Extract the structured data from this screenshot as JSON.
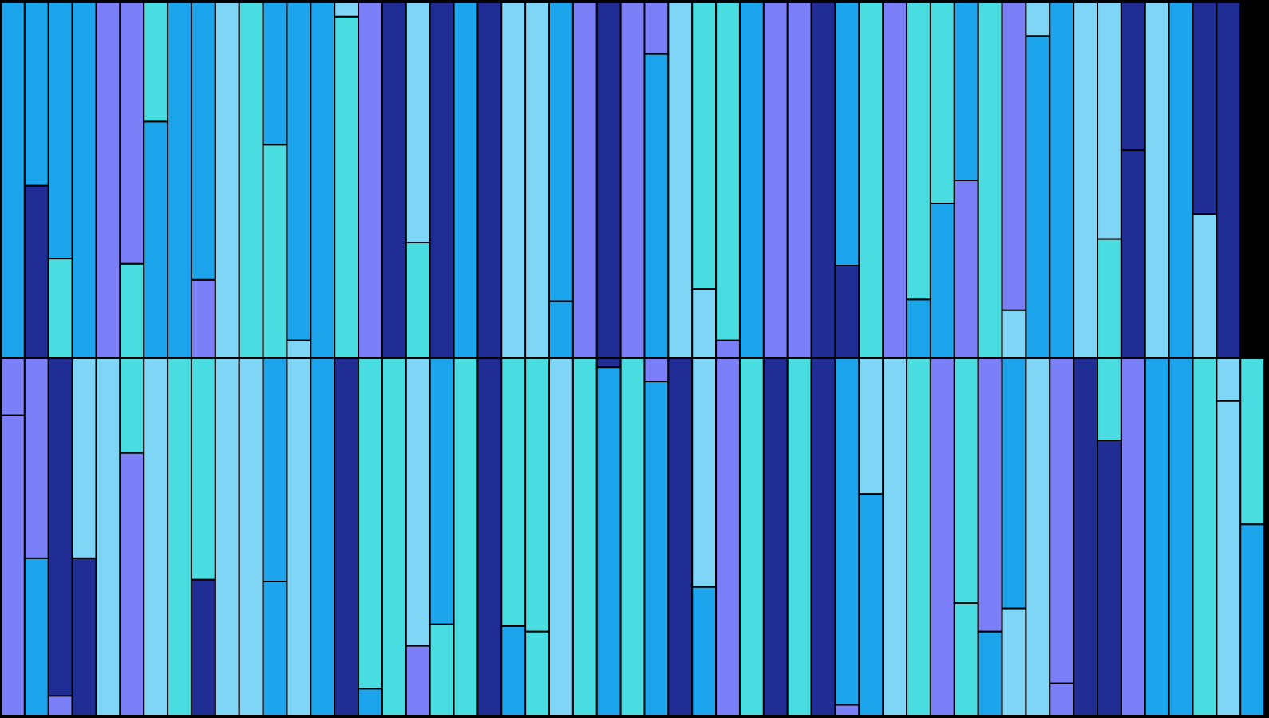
{
  "palette": {
    "A": "#1ca5ec",
    "B": "#1f2d94",
    "C": "#49dce0",
    "D": "#7b80f8",
    "E": "#7fd5f6",
    "outline": "#000000"
  },
  "columns": [
    {
      "top": [
        [
          "A",
          1.0
        ]
      ],
      "bottom": [
        [
          "D",
          0.16
        ],
        [
          "D",
          0.84
        ]
      ]
    },
    {
      "top": [
        [
          "A",
          0.515
        ],
        [
          "B",
          0.485
        ]
      ],
      "bottom": [
        [
          "D",
          0.56
        ],
        [
          "A",
          0.44
        ]
      ]
    },
    {
      "top": [
        [
          "A",
          0.72
        ],
        [
          "C",
          0.28
        ]
      ],
      "bottom": [
        [
          "B",
          0.945
        ],
        [
          "D",
          0.055
        ]
      ]
    },
    {
      "top": [
        [
          "A",
          1.0
        ]
      ],
      "bottom": [
        [
          "E",
          0.56
        ],
        [
          "B",
          0.44
        ]
      ]
    },
    {
      "top": [
        [
          "D",
          1.0
        ]
      ],
      "bottom": [
        [
          "E",
          1.0
        ]
      ]
    },
    {
      "top": [
        [
          "D",
          0.735
        ],
        [
          "C",
          0.265
        ]
      ],
      "bottom": [
        [
          "C",
          0.265
        ],
        [
          "D",
          0.735
        ]
      ]
    },
    {
      "top": [
        [
          "C",
          0.335
        ],
        [
          "A",
          0.665
        ]
      ],
      "bottom": [
        [
          "E",
          1.0
        ]
      ]
    },
    {
      "top": [
        [
          "A",
          1.0
        ]
      ],
      "bottom": [
        [
          "C",
          1.0
        ]
      ]
    },
    {
      "top": [
        [
          "A",
          0.78
        ],
        [
          "D",
          0.22
        ]
      ],
      "bottom": [
        [
          "C",
          0.62
        ],
        [
          "B",
          0.38
        ]
      ]
    },
    {
      "top": [
        [
          "E",
          1.0
        ]
      ],
      "bottom": [
        [
          "E",
          1.0
        ]
      ]
    },
    {
      "top": [
        [
          "C",
          1.0
        ]
      ],
      "bottom": [
        [
          "E",
          1.0
        ]
      ]
    },
    {
      "top": [
        [
          "A",
          0.4
        ],
        [
          "C",
          0.6
        ]
      ],
      "bottom": [
        [
          "A",
          0.625
        ],
        [
          "A",
          0.375
        ]
      ]
    },
    {
      "top": [
        [
          "A",
          0.95
        ],
        [
          "E",
          0.05
        ]
      ],
      "bottom": [
        [
          "E",
          1.0
        ]
      ]
    },
    {
      "top": [
        [
          "A",
          1.0
        ]
      ],
      "bottom": [
        [
          "A",
          1.0
        ]
      ]
    },
    {
      "top": [
        [
          "E",
          0.04
        ],
        [
          "C",
          0.96
        ]
      ],
      "bottom": [
        [
          "B",
          1.0
        ]
      ]
    },
    {
      "top": [
        [
          "D",
          1.0
        ]
      ],
      "bottom": [
        [
          "C",
          0.925
        ],
        [
          "A",
          0.075
        ]
      ]
    },
    {
      "top": [
        [
          "B",
          1.0
        ]
      ],
      "bottom": [
        [
          "C",
          1.0
        ]
      ]
    },
    {
      "top": [
        [
          "E",
          0.675
        ],
        [
          "C",
          0.325
        ]
      ],
      "bottom": [
        [
          "E",
          0.805
        ],
        [
          "D",
          0.195
        ]
      ]
    },
    {
      "top": [
        [
          "B",
          1.0
        ]
      ],
      "bottom": [
        [
          "A",
          0.745
        ],
        [
          "C",
          0.255
        ]
      ]
    },
    {
      "top": [
        [
          "A",
          1.0
        ]
      ],
      "bottom": [
        [
          "C",
          1.0
        ]
      ]
    },
    {
      "top": [
        [
          "B",
          1.0
        ]
      ],
      "bottom": [
        [
          "B",
          1.0
        ]
      ]
    },
    {
      "top": [
        [
          "E",
          1.0
        ]
      ],
      "bottom": [
        [
          "C",
          0.75
        ],
        [
          "A",
          0.25
        ]
      ]
    },
    {
      "top": [
        [
          "E",
          1.0
        ]
      ],
      "bottom": [
        [
          "C",
          0.765
        ],
        [
          "C",
          0.235
        ]
      ]
    },
    {
      "top": [
        [
          "A",
          0.84
        ],
        [
          "A",
          0.16
        ]
      ],
      "bottom": [
        [
          "E",
          1.0
        ]
      ]
    },
    {
      "top": [
        [
          "D",
          1.0
        ]
      ],
      "bottom": [
        [
          "C",
          1.0
        ]
      ]
    },
    {
      "top": [
        [
          "B",
          1.0
        ]
      ],
      "bottom": [
        [
          "B",
          0.025
        ],
        [
          "A",
          0.975
        ]
      ]
    },
    {
      "top": [
        [
          "D",
          1.0
        ]
      ],
      "bottom": [
        [
          "C",
          1.0
        ]
      ]
    },
    {
      "top": [
        [
          "D",
          0.145
        ],
        [
          "A",
          0.855
        ]
      ],
      "bottom": [
        [
          "D",
          0.065
        ],
        [
          "A",
          0.935
        ]
      ]
    },
    {
      "top": [
        [
          "E",
          1.0
        ]
      ],
      "bottom": [
        [
          "B",
          1.0
        ]
      ]
    },
    {
      "top": [
        [
          "C",
          0.805
        ],
        [
          "E",
          0.195
        ]
      ],
      "bottom": [
        [
          "E",
          0.64
        ],
        [
          "A",
          0.36
        ]
      ]
    },
    {
      "top": [
        [
          "C",
          0.95
        ],
        [
          "D",
          0.05
        ]
      ],
      "bottom": [
        [
          "D",
          1.0
        ]
      ]
    },
    {
      "top": [
        [
          "A",
          1.0
        ]
      ],
      "bottom": [
        [
          "C",
          1.0
        ]
      ]
    },
    {
      "top": [
        [
          "D",
          1.0
        ]
      ],
      "bottom": [
        [
          "B",
          1.0
        ]
      ]
    },
    {
      "top": [
        [
          "D",
          1.0
        ]
      ],
      "bottom": [
        [
          "C",
          1.0
        ]
      ]
    },
    {
      "top": [
        [
          "B",
          1.0
        ]
      ],
      "bottom": [
        [
          "B",
          1.0
        ]
      ]
    },
    {
      "top": [
        [
          "A",
          0.74
        ],
        [
          "B",
          0.26
        ]
      ],
      "bottom": [
        [
          "A",
          0.97
        ],
        [
          "D",
          0.03
        ]
      ]
    },
    {
      "top": [
        [
          "C",
          1.0
        ]
      ],
      "bottom": [
        [
          "E",
          0.38
        ],
        [
          "A",
          0.62
        ]
      ]
    },
    {
      "top": [
        [
          "D",
          1.0
        ]
      ],
      "bottom": [
        [
          "E",
          1.0
        ]
      ]
    },
    {
      "top": [
        [
          "C",
          0.835
        ],
        [
          "A",
          0.165
        ]
      ],
      "bottom": [
        [
          "C",
          1.0
        ]
      ]
    },
    {
      "top": [
        [
          "C",
          0.565
        ],
        [
          "A",
          0.435
        ]
      ],
      "bottom": [
        [
          "D",
          1.0
        ]
      ]
    },
    {
      "top": [
        [
          "A",
          0.5
        ],
        [
          "D",
          0.5
        ]
      ],
      "bottom": [
        [
          "C",
          0.685
        ],
        [
          "C",
          0.315
        ]
      ]
    },
    {
      "top": [
        [
          "C",
          1.0
        ]
      ],
      "bottom": [
        [
          "D",
          0.765
        ],
        [
          "A",
          0.235
        ]
      ]
    },
    {
      "top": [
        [
          "D",
          0.865
        ],
        [
          "E",
          0.135
        ]
      ],
      "bottom": [
        [
          "A",
          0.7
        ],
        [
          "E",
          0.3
        ]
      ]
    },
    {
      "top": [
        [
          "E",
          0.095
        ],
        [
          "A",
          0.905
        ]
      ],
      "bottom": [
        [
          "E",
          1.0
        ]
      ]
    },
    {
      "top": [
        [
          "A",
          1.0
        ]
      ],
      "bottom": [
        [
          "D",
          0.91
        ],
        [
          "D",
          0.09
        ]
      ]
    },
    {
      "top": [
        [
          "E",
          1.0
        ]
      ],
      "bottom": [
        [
          "B",
          1.0
        ]
      ]
    },
    {
      "top": [
        [
          "E",
          0.665
        ],
        [
          "C",
          0.335
        ]
      ],
      "bottom": [
        [
          "C",
          0.23
        ],
        [
          "B",
          0.77
        ]
      ]
    },
    {
      "top": [
        [
          "B",
          0.415
        ],
        [
          "B",
          0.585
        ]
      ],
      "bottom": [
        [
          "D",
          1.0
        ]
      ]
    },
    {
      "top": [
        [
          "E",
          1.0
        ]
      ],
      "bottom": [
        [
          "A",
          1.0
        ]
      ]
    },
    {
      "top": [
        [
          "A",
          1.0
        ]
      ],
      "bottom": [
        [
          "A",
          1.0
        ]
      ]
    },
    {
      "top": [
        [
          "B",
          0.595
        ],
        [
          "E",
          0.405
        ]
      ],
      "bottom": [
        [
          "C",
          1.0
        ]
      ]
    },
    {
      "top": [
        [
          "B",
          1.0
        ]
      ],
      "bottom": [
        [
          "E",
          0.12
        ],
        [
          "E",
          0.88
        ]
      ]
    },
    {
      "top": [],
      "bottom": [
        [
          "C",
          0.465
        ],
        [
          "A",
          0.535
        ]
      ]
    }
  ]
}
